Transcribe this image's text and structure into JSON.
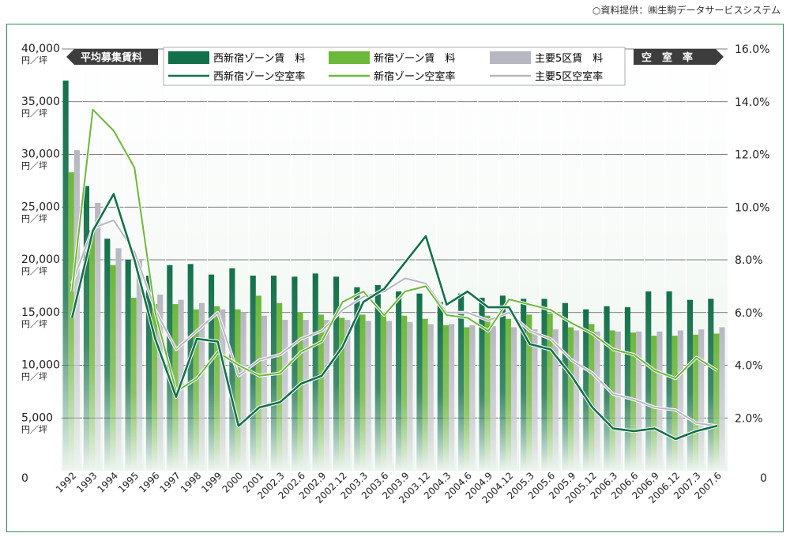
{
  "source_note": "○資料提供：㈱生駒データサービスシステム",
  "chart_data": {
    "type": "bar+line",
    "left_axis_title": "平均募集賃料",
    "right_axis_title": "空　室　率",
    "left_axis": {
      "ylim": [
        0,
        40000
      ],
      "ticks": [
        {
          "value": 40000,
          "label": "40,000",
          "unit": "円／坪"
        },
        {
          "value": 35000,
          "label": "35,000",
          "unit": "円／坪"
        },
        {
          "value": 30000,
          "label": "30,000",
          "unit": "円／坪"
        },
        {
          "value": 25000,
          "label": "25,000",
          "unit": "円／坪"
        },
        {
          "value": 20000,
          "label": "20,000",
          "unit": "円／坪"
        },
        {
          "value": 15000,
          "label": "15,000",
          "unit": "円／坪"
        },
        {
          "value": 10000,
          "label": "10,000",
          "unit": "円／坪"
        },
        {
          "value": 5000,
          "label": "5,000",
          "unit": "円／坪"
        },
        {
          "value": 0,
          "label": "0",
          "unit": ""
        }
      ]
    },
    "right_axis": {
      "ylim": [
        0,
        16
      ],
      "ticks": [
        {
          "value": 16,
          "label": "16.0%"
        },
        {
          "value": 14,
          "label": "14.0%"
        },
        {
          "value": 12,
          "label": "12.0%"
        },
        {
          "value": 10,
          "label": "10.0%"
        },
        {
          "value": 8,
          "label": "8.0%"
        },
        {
          "value": 6,
          "label": "6.0%"
        },
        {
          "value": 4,
          "label": "4.0%"
        },
        {
          "value": 2,
          "label": "2.0%"
        },
        {
          "value": 0,
          "label": "0"
        }
      ]
    },
    "categories": [
      "1992",
      "1993",
      "1994",
      "1995",
      "1996",
      "1997",
      "1998",
      "1999",
      "2000",
      "2001",
      "2002.3",
      "2002.6",
      "2002.9",
      "2002.12",
      "2003.3",
      "2003.6",
      "2003.9",
      "2003.12",
      "2004.3",
      "2004.6",
      "2004.9",
      "2004.12",
      "2005.3",
      "2005.6",
      "2005.9",
      "2005.12",
      "2006.3",
      "2006.6",
      "2006.9",
      "2006.12",
      "2007.3",
      "2007.6"
    ],
    "bar_series": [
      {
        "name": "西新宿ゾーン賃　料",
        "color": "#12714a",
        "values": [
          37000,
          27000,
          22000,
          20000,
          18500,
          19500,
          19600,
          18600,
          19200,
          18500,
          18500,
          18400,
          18700,
          18400,
          17400,
          17600,
          17000,
          16800,
          16000,
          16800,
          16400,
          16600,
          16300,
          16300,
          15900,
          15300,
          15600,
          15500,
          17000,
          17000,
          16200,
          16300
        ]
      },
      {
        "name": "新宿ゾーン賃　料",
        "color": "#6cb83a",
        "values": [
          28300,
          22800,
          19500,
          16400,
          15800,
          15800,
          15300,
          15600,
          15300,
          16600,
          15900,
          15000,
          14800,
          14500,
          14800,
          14800,
          14700,
          14400,
          13800,
          13600,
          14700,
          14400,
          14800,
          14900,
          13600,
          13900,
          13300,
          13100,
          12800,
          12800,
          12900,
          13000
        ]
      },
      {
        "name": "主要5区賃　料",
        "color": "#b7b7c1",
        "values": [
          30400,
          25400,
          21100,
          20000,
          16700,
          16200,
          15900,
          15300,
          15000,
          14700,
          14300,
          14300,
          14300,
          14300,
          14200,
          14200,
          14100,
          13900,
          13900,
          13800,
          13700,
          13600,
          13400,
          13400,
          13300,
          13200,
          13200,
          13200,
          13200,
          13300,
          13400,
          13600
        ]
      }
    ],
    "line_series": [
      {
        "name": "西新宿ゾーン空室率",
        "color": "#12714a",
        "values": [
          5.8,
          9.1,
          10.5,
          8.0,
          5.0,
          2.8,
          5.0,
          4.9,
          1.7,
          2.4,
          2.6,
          3.3,
          3.6,
          4.7,
          6.4,
          6.9,
          7.9,
          8.9,
          6.3,
          6.8,
          6.2,
          6.2,
          4.8,
          4.6,
          3.6,
          2.4,
          1.6,
          1.5,
          1.6,
          1.2,
          1.5,
          1.7
        ]
      },
      {
        "name": "新宿ゾーン空室率",
        "color": "#6cb83a",
        "values": [
          6.8,
          13.7,
          12.9,
          11.5,
          6.0,
          3.0,
          3.5,
          4.5,
          4.0,
          3.6,
          3.7,
          4.5,
          4.9,
          6.4,
          6.8,
          5.9,
          6.8,
          7.0,
          5.9,
          5.8,
          5.3,
          6.5,
          6.3,
          6.1,
          5.6,
          5.2,
          4.6,
          4.4,
          3.8,
          3.5,
          4.3,
          3.8
        ]
      },
      {
        "name": "主要5区空室率",
        "color": "#b7b7c1",
        "values": [
          7.1,
          9.2,
          9.5,
          8.3,
          6.1,
          4.6,
          5.3,
          6.0,
          3.6,
          4.2,
          4.4,
          5.0,
          5.3,
          6.1,
          6.6,
          6.8,
          7.3,
          7.1,
          6.0,
          6.0,
          5.7,
          6.0,
          5.3,
          5.0,
          4.2,
          3.7,
          2.9,
          2.7,
          2.4,
          2.3,
          1.8,
          1.7
        ]
      }
    ]
  }
}
